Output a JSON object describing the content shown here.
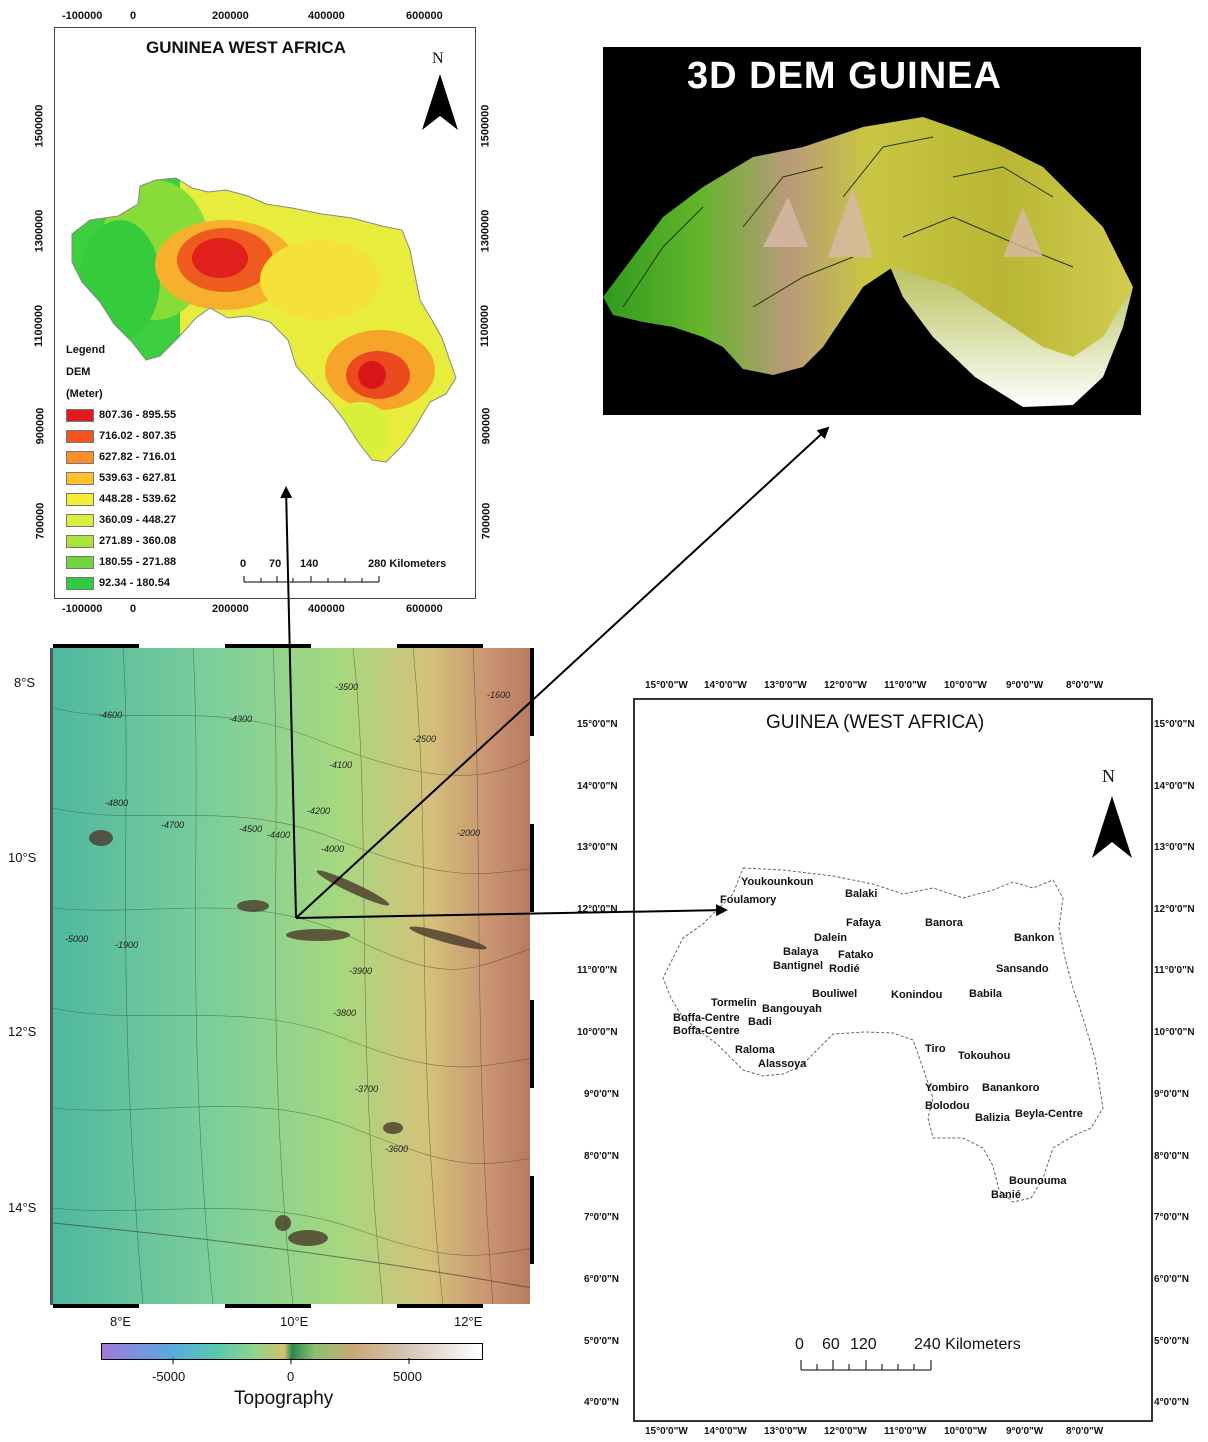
{
  "dem_map": {
    "title": "GUNINEA WEST AFRICA",
    "north_label": "N",
    "legend_title": "Legend",
    "legend_sub1": "DEM",
    "legend_sub2": "(Meter)",
    "legend": [
      {
        "label": "807.36 - 895.55",
        "color": "#e31a1c"
      },
      {
        "label": "716.02 - 807.35",
        "color": "#f0551e"
      },
      {
        "label": "627.82 - 716.01",
        "color": "#f7902a"
      },
      {
        "label": "539.63 - 627.81",
        "color": "#fbbf2f"
      },
      {
        "label": "448.28 - 539.62",
        "color": "#f5ec3a"
      },
      {
        "label": "360.09 - 448.27",
        "color": "#d8ef3c"
      },
      {
        "label": "271.89 - 360.08",
        "color": "#a9e43a"
      },
      {
        "label": "180.55 - 271.88",
        "color": "#6fd63a"
      },
      {
        "label": "92.34 - 180.54",
        "color": "#2ecc40"
      }
    ],
    "x_ticks": [
      "-100000",
      "0",
      "200000",
      "400000",
      "600000"
    ],
    "y_ticks": [
      "1500000",
      "1300000",
      "1100000",
      "900000",
      "700000"
    ],
    "scale_labels": [
      "0",
      "70",
      "140",
      "280 Kilometers"
    ]
  },
  "dem3d": {
    "title": "3D DEM GUINEA"
  },
  "topo_map": {
    "lat_ticks": [
      "8°S",
      "10°S",
      "12°S",
      "14°S"
    ],
    "lon_ticks": [
      "8°E",
      "10°E",
      "12°E"
    ],
    "colorbar_ticks": [
      "-5000",
      "0",
      "5000"
    ],
    "colorbar_label": "Topography",
    "contour_labels": [
      "-4600",
      "-4300",
      "-4800",
      "-4700",
      "-4500",
      "-4400",
      "-4200",
      "-4100",
      "-4000",
      "-3900",
      "-3800",
      "-3700",
      "-3600",
      "-3500",
      "-1600",
      "-2500",
      "-2000",
      "-5000",
      "-1900"
    ]
  },
  "town_map": {
    "title": "GUINEA (WEST AFRICA)",
    "north_label": "N",
    "lon_ticks": [
      "15°0'0\"W",
      "14°0'0\"W",
      "13°0'0\"W",
      "12°0'0\"W",
      "11°0'0\"W",
      "10°0'0\"W",
      "9°0'0\"W",
      "8°0'0\"W"
    ],
    "lat_ticks": [
      "15°0'0\"N",
      "14°0'0\"N",
      "13°0'0\"N",
      "12°0'0\"N",
      "11°0'0\"N",
      "10°0'0\"N",
      "9°0'0\"N",
      "8°0'0\"N",
      "7°0'0\"N",
      "6°0'0\"N",
      "5°0'0\"N",
      "4°0'0\"N"
    ],
    "scale_labels": [
      "0",
      "60",
      "120",
      "240 Kilometers"
    ],
    "towns": [
      {
        "name": "Youkounkoun"
      },
      {
        "name": "Foulamory"
      },
      {
        "name": "Balaki"
      },
      {
        "name": "Fafaya"
      },
      {
        "name": "Banora"
      },
      {
        "name": "Dalein"
      },
      {
        "name": "Balaya"
      },
      {
        "name": "Fatako"
      },
      {
        "name": "Bantignel"
      },
      {
        "name": "Rodié"
      },
      {
        "name": "Bankon"
      },
      {
        "name": "Sansando"
      },
      {
        "name": "Bouliwel"
      },
      {
        "name": "Konindou"
      },
      {
        "name": "Babila"
      },
      {
        "name": "Tormelin"
      },
      {
        "name": "Bangouyah"
      },
      {
        "name": "Boffa-Centre"
      },
      {
        "name": "Badi"
      },
      {
        "name": "Boffa-Centre"
      },
      {
        "name": "Raloma"
      },
      {
        "name": "Tiro"
      },
      {
        "name": "Tokouhou"
      },
      {
        "name": "Alassoya"
      },
      {
        "name": "Yombiro"
      },
      {
        "name": "Banankoro"
      },
      {
        "name": "Bolodou"
      },
      {
        "name": "Balizia"
      },
      {
        "name": "Beyla-Centre"
      },
      {
        "name": "Bounouma"
      },
      {
        "name": "Banié"
      }
    ]
  }
}
